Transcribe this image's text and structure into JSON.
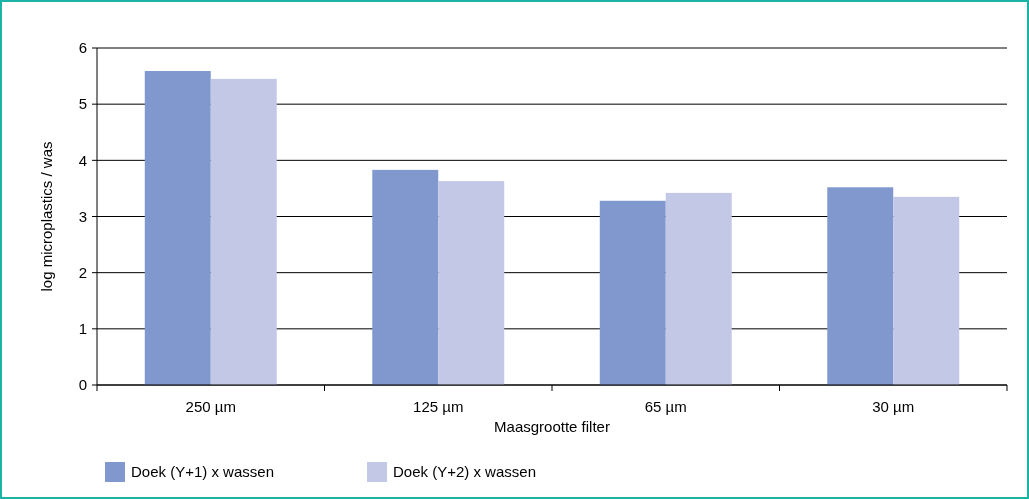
{
  "chart_data": {
    "type": "bar",
    "xlabel": "Maasgrootte filter",
    "ylabel": "log microplastics / was",
    "categories": [
      "250 µm",
      "125 µm",
      "65 µm",
      "30 µm"
    ],
    "series": [
      {
        "name": "Doek (Y+1) x wassen",
        "color": "#8098ce",
        "values": [
          5.59,
          3.83,
          3.28,
          3.52
        ]
      },
      {
        "name": "Doek (Y+2) x wassen",
        "color": "#c2c8e6",
        "values": [
          5.45,
          3.63,
          3.42,
          3.35
        ]
      }
    ],
    "ylim": [
      0,
      6
    ],
    "yticks": [
      0,
      1,
      2,
      3,
      4,
      5,
      6
    ],
    "grid": "y",
    "legend": "bottom left"
  }
}
